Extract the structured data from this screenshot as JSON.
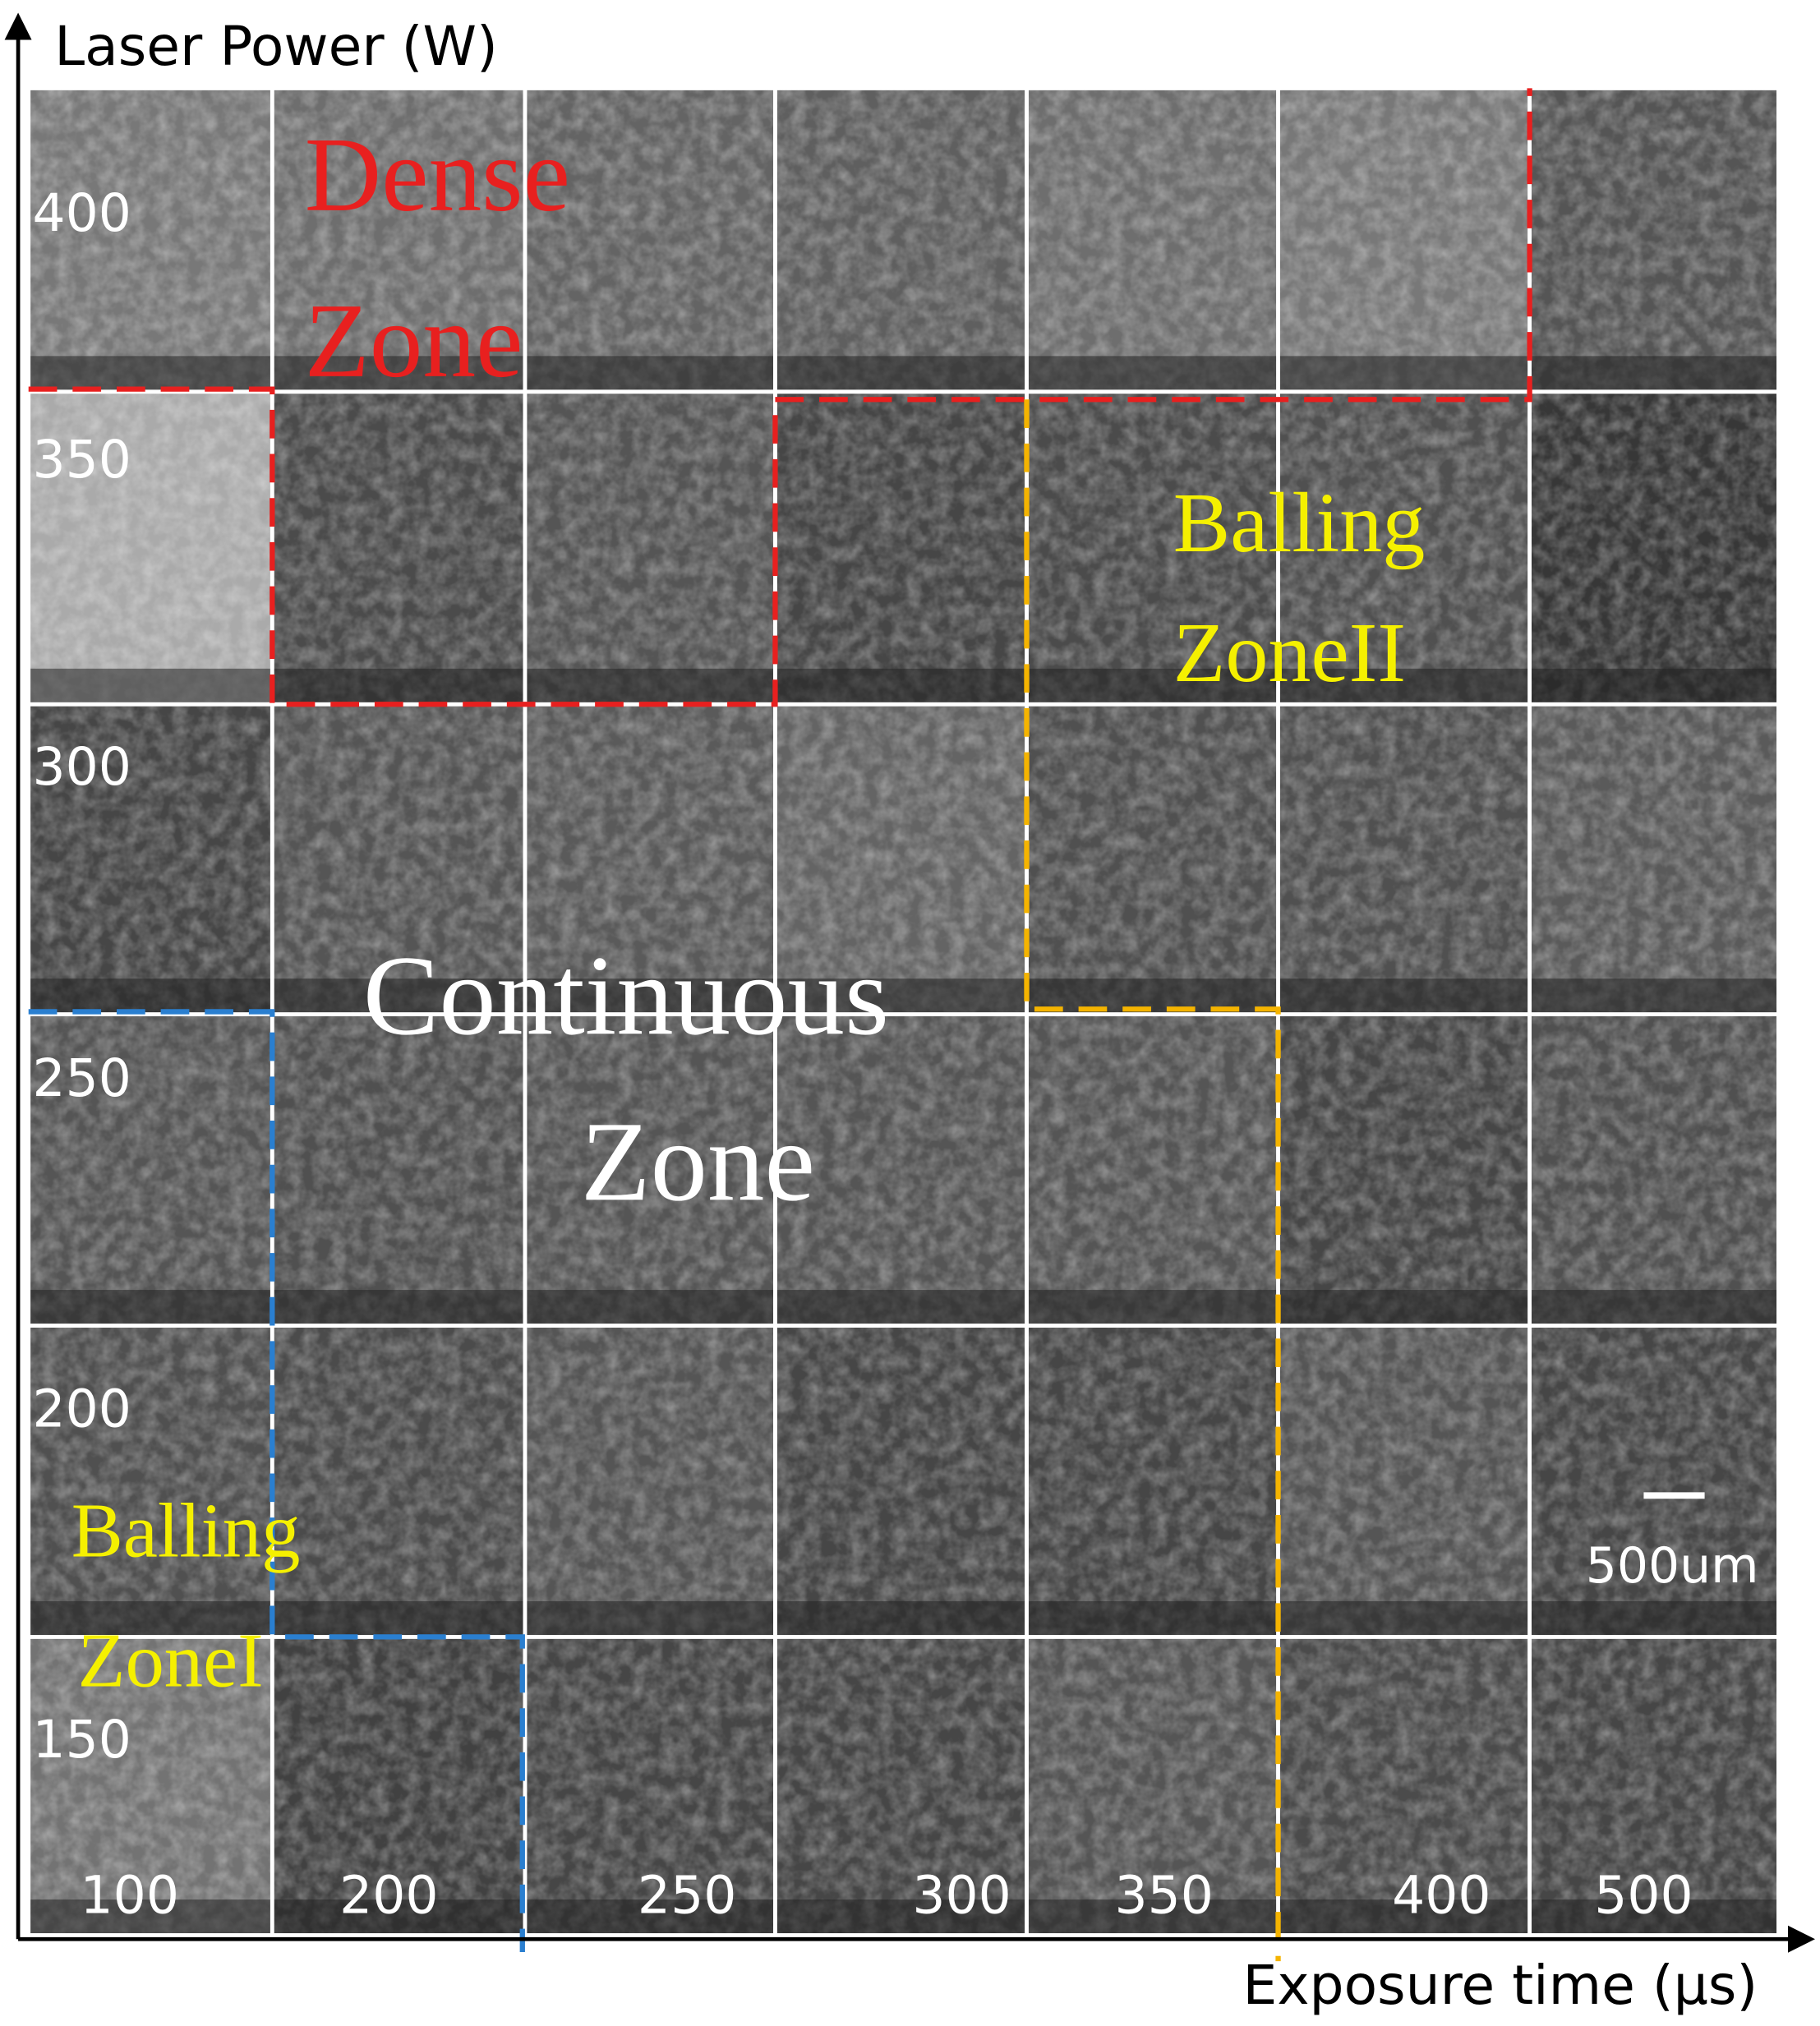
{
  "axes": {
    "y_label": "Laser Power (W)",
    "x_label": "Exposure time (μs)"
  },
  "rows": [
    "400",
    "350",
    "300",
    "250",
    "200",
    "150"
  ],
  "columns": [
    "100",
    "200",
    "250",
    "300",
    "350",
    "400",
    "500"
  ],
  "zones": {
    "dense": [
      "Dense",
      "Zone"
    ],
    "balling_2": [
      "Balling",
      "ZoneII"
    ],
    "continuous": [
      "Continuous",
      "Zone"
    ],
    "balling_1": [
      "Balling",
      "ZoneI"
    ]
  },
  "scale_bar": "500um"
}
